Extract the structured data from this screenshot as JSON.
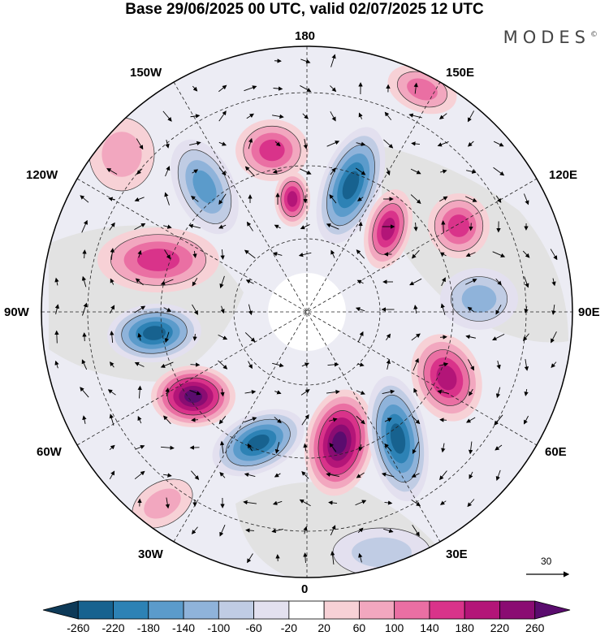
{
  "title": "Base 29/06/2025 00 UTC, valid 02/07/2025 12 UTC",
  "brand": "MODES",
  "brand_mark": "©",
  "map": {
    "projection": "north-polar-stereographic",
    "longitude_labels": {
      "top": "180",
      "bottom": "0",
      "left": "90W",
      "right": "90E",
      "upper_left_1": "150W",
      "upper_left_2": "120W",
      "lower_left_1": "60W",
      "lower_left_2": "30W",
      "upper_right_1": "150E",
      "upper_right_2": "120E",
      "lower_right_1": "60E",
      "lower_right_2": "30E"
    },
    "vector_scale_label": "30"
  },
  "colorbar": {
    "ticks": [
      "-260",
      "-220",
      "-180",
      "-140",
      "-100",
      "-60",
      "-20",
      "20",
      "60",
      "100",
      "140",
      "180",
      "220",
      "260"
    ],
    "colors": [
      "#0e3a58",
      "#17628f",
      "#2d82b5",
      "#5b9bcb",
      "#8fb3da",
      "#c0cce4",
      "#e3e0ef",
      "#ffffff",
      "#f7d1d6",
      "#f2a7bf",
      "#ea6fa3",
      "#d9338a",
      "#b31578",
      "#8a0c72",
      "#5a0c6e"
    ]
  },
  "anomalies": [
    {
      "name": "anomaly-high-150e",
      "sign": "pos",
      "level": 3
    },
    {
      "name": "anomaly-low-180-left",
      "sign": "neg",
      "level": 4
    },
    {
      "name": "anomaly-high-180",
      "sign": "pos",
      "level": 4
    },
    {
      "name": "anomaly-high-180-inner",
      "sign": "pos",
      "level": 5
    },
    {
      "name": "anomaly-low-160e",
      "sign": "neg",
      "level": 6
    },
    {
      "name": "anomaly-high-130e",
      "sign": "pos",
      "level": 5
    },
    {
      "name": "anomaly-high-110e",
      "sign": "pos",
      "level": 4
    },
    {
      "name": "anomaly-low-90e",
      "sign": "neg",
      "level": 3
    },
    {
      "name": "anomaly-high-110w",
      "sign": "pos",
      "level": 4
    },
    {
      "name": "anomaly-low-90w",
      "sign": "neg",
      "level": 6
    },
    {
      "name": "anomaly-high-70w",
      "sign": "pos",
      "level": 7
    },
    {
      "name": "anomaly-low-45w",
      "sign": "neg",
      "level": 6
    },
    {
      "name": "anomaly-high-5e",
      "sign": "pos",
      "level": 7
    },
    {
      "name": "anomaly-low-25e",
      "sign": "neg",
      "level": 6
    },
    {
      "name": "anomaly-high-65e",
      "sign": "pos",
      "level": 5
    },
    {
      "name": "anomaly-high-130w",
      "sign": "pos",
      "level": 2
    },
    {
      "name": "anomaly-low-20e-south",
      "sign": "neg",
      "level": 2
    },
    {
      "name": "anomaly-high-40w-south",
      "sign": "pos",
      "level": 2
    }
  ]
}
